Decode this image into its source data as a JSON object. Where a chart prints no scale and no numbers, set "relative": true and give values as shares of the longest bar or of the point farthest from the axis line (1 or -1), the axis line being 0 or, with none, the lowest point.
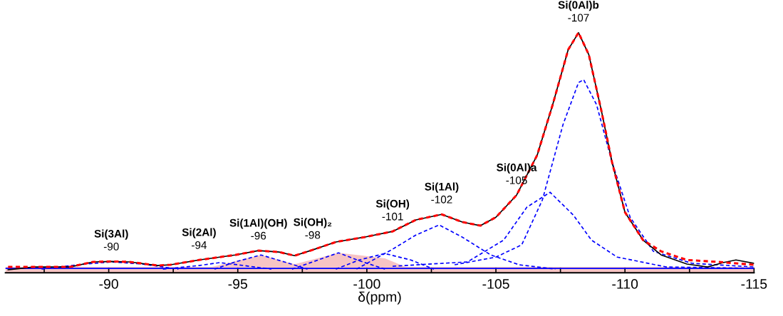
{
  "chart_data": {
    "type": "line",
    "relative": true,
    "xlabel": "δ(ppm)",
    "xlim": [
      -86,
      -115
    ],
    "xticks": [
      {
        "value": -87.5,
        "label": null
      },
      -90,
      {
        "value": -92.5,
        "label": null
      },
      -95,
      {
        "value": -97.5,
        "label": null
      },
      -100,
      {
        "value": -102.5,
        "label": null
      },
      -105,
      {
        "value": -107.5,
        "label": null
      },
      -110,
      {
        "value": -112.5,
        "label": null
      },
      -115
    ],
    "grid": false,
    "legend": false,
    "series": [
      {
        "type": "area",
        "color": "#f7c4c4",
        "x": [
          -86,
          -94,
          -95.9,
          -97.2,
          -98.9,
          -100.7,
          -101.5,
          -115
        ],
        "values": [
          0.024,
          0.024,
          0.074,
          0.035,
          0.083,
          0.06,
          0.024,
          0.024
        ]
      },
      {
        "line_style": "solid",
        "color": "#0000ff",
        "x": [
          -86,
          -115
        ],
        "values": [
          0.018,
          0.018
        ]
      },
      {
        "type": "line",
        "line_style": "dashed",
        "color": "#0000ff",
        "x": [
          -87.4,
          -88.8,
          -90.1,
          -91.3,
          -92.7
        ],
        "values": [
          0.015,
          0.033,
          0.045,
          0.036,
          0.015
        ]
      },
      {
        "type": "line",
        "line_style": "dashed",
        "color": "#0000ff",
        "x": [
          -92.1,
          -93.5,
          -94.3,
          -95.0,
          -96.3
        ],
        "values": [
          0.015,
          0.03,
          0.042,
          0.033,
          0.015
        ]
      },
      {
        "type": "line",
        "line_style": "dashed",
        "color": "#0000ff",
        "x": [
          -94.1,
          -94.9,
          -95.9,
          -96.8,
          -97.7
        ],
        "values": [
          0.015,
          0.045,
          0.074,
          0.045,
          0.015
        ]
      },
      {
        "type": "line",
        "line_style": "dashed",
        "color": "#0000ff",
        "x": [
          -97.1,
          -97.9,
          -98.9,
          -99.7,
          -100.7
        ],
        "values": [
          0.015,
          0.045,
          0.083,
          0.05,
          0.015
        ]
      },
      {
        "type": "line",
        "line_style": "dashed",
        "color": "#0000ff",
        "x": [
          -98.8,
          -99.7,
          -100.7,
          -101.7,
          -102.6
        ],
        "values": [
          0.015,
          0.053,
          0.08,
          0.053,
          0.015
        ]
      },
      {
        "type": "line",
        "line_style": "dashed",
        "color": "#0000ff",
        "x": [
          -99.6,
          -101.0,
          -101.9,
          -102.8,
          -103.7,
          -104.8,
          -105.9,
          -107.3
        ],
        "values": [
          0.015,
          0.098,
          0.157,
          0.199,
          0.148,
          0.074,
          0.033,
          0.015
        ]
      },
      {
        "type": "line",
        "line_style": "dashed",
        "color": "#0000ff",
        "x": [
          -101.0,
          -103.9,
          -105.3,
          -106.2,
          -107.1,
          -108.0,
          -108.7,
          -109.7,
          -111.6,
          -115.0
        ],
        "values": [
          0.027,
          0.045,
          0.136,
          0.273,
          0.335,
          0.24,
          0.136,
          0.065,
          0.024,
          0.018
        ]
      },
      {
        "type": "line",
        "line_style": "dashed",
        "color": "#0000ff",
        "x": [
          -103.4,
          -105.0,
          -106.0,
          -106.8,
          -107.6,
          -108.2,
          -108.4,
          -108.9,
          -109.5,
          -110.2,
          -111.1,
          -112.6,
          -115.0
        ],
        "values": [
          0.033,
          0.065,
          0.116,
          0.303,
          0.617,
          0.792,
          0.804,
          0.7,
          0.46,
          0.231,
          0.089,
          0.039,
          0.024
        ]
      },
      {
        "line_style": "solid",
        "color": "#000000",
        "x": [
          -86.1,
          -87.1,
          -88.5,
          -89.4,
          -90.1,
          -90.8,
          -91.9,
          -92.4,
          -93.5,
          -94.9,
          -95.8,
          -96.6,
          -97.2,
          -97.9,
          -98.8,
          -99.9,
          -101.0,
          -101.9,
          -102.9,
          -103.7,
          -104.4,
          -105.0,
          -105.8,
          -106.6,
          -107.2,
          -107.8,
          -108.2,
          -108.6,
          -109.1,
          -109.5,
          -110.0,
          -110.7,
          -111.4,
          -112.4,
          -113.2,
          -113.8,
          -114.3,
          -115.0
        ],
        "values": [
          0.012,
          0.024,
          0.024,
          0.045,
          0.047,
          0.045,
          0.03,
          0.033,
          0.053,
          0.074,
          0.092,
          0.086,
          0.071,
          0.095,
          0.128,
          0.148,
          0.172,
          0.22,
          0.243,
          0.211,
          0.196,
          0.231,
          0.323,
          0.49,
          0.7,
          0.929,
          1.0,
          0.908,
          0.668,
          0.46,
          0.252,
          0.136,
          0.074,
          0.036,
          0.024,
          0.042,
          0.053,
          0.039
        ]
      },
      {
        "line_style": "dashed",
        "color": "#ff0000",
        "x": [
          -86.1,
          -87.1,
          -88.5,
          -89.4,
          -90.1,
          -90.8,
          -91.9,
          -92.4,
          -93.5,
          -94.9,
          -95.8,
          -96.6,
          -97.2,
          -97.9,
          -98.8,
          -99.9,
          -101.0,
          -101.9,
          -102.9,
          -103.7,
          -104.4,
          -105.0,
          -105.8,
          -106.6,
          -107.2,
          -107.8,
          -108.2,
          -108.6,
          -109.1,
          -109.5,
          -110.0,
          -110.7,
          -111.4,
          -112.4,
          -113.6,
          -115.0
        ],
        "values": [
          0.024,
          0.024,
          0.024,
          0.045,
          0.047,
          0.045,
          0.03,
          0.033,
          0.053,
          0.074,
          0.092,
          0.086,
          0.071,
          0.095,
          0.128,
          0.148,
          0.172,
          0.22,
          0.243,
          0.211,
          0.196,
          0.231,
          0.323,
          0.49,
          0.7,
          0.929,
          1.0,
          0.908,
          0.668,
          0.46,
          0.252,
          0.136,
          0.089,
          0.053,
          0.045,
          0.033
        ]
      }
    ],
    "annotations": [
      {
        "text": "Si(3Al)\n-90",
        "x": -90.1,
        "y": 0.047
      },
      {
        "text": "Si(2Al)\n-94",
        "x": -93.5,
        "y": 0.053
      },
      {
        "text": "Si(1Al)(OH)\n-96",
        "x": -95.8,
        "y": 0.092
      },
      {
        "text": "Si(OH)₂\n-98",
        "x": -97.9,
        "y": 0.095
      },
      {
        "text": "Si(OH)\n-101",
        "x": -101.0,
        "y": 0.172
      },
      {
        "text": "Si(1Al)\n-102",
        "x": -102.9,
        "y": 0.243
      },
      {
        "text": "Si(0Al)a\n-105",
        "x": -105.8,
        "y": 0.323
      },
      {
        "text": "Si(0Al)b\n-107",
        "x": -108.2,
        "y": 1.0
      }
    ]
  }
}
